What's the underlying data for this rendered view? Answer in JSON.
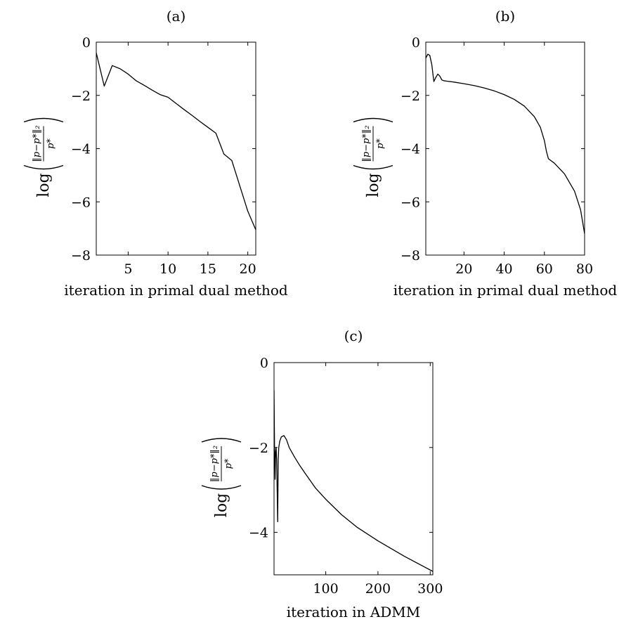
{
  "chart_data": [
    {
      "panel_label": "(a)",
      "type": "line",
      "title": "(a)",
      "xlabel": "iteration in primal dual method",
      "ylabel": "log(‖p−p*‖₂ / p*)",
      "ylabel_parts": {
        "log": "log",
        "numerator": "‖p−p*‖₂",
        "denominator": "p*"
      },
      "xlim": [
        1,
        21
      ],
      "ylim": [
        -8,
        0
      ],
      "xticks": [
        5,
        10,
        15,
        20
      ],
      "yticks": [
        0,
        -2,
        -4,
        -6,
        -8
      ],
      "ytick_labels": [
        "0",
        "−2",
        "−4",
        "−6",
        "−8"
      ],
      "xtick_labels": [
        "5",
        "10",
        "15",
        "20"
      ],
      "grid": false,
      "series": [
        {
          "x": [
            1,
            2,
            3,
            4,
            5,
            6,
            7,
            8,
            9,
            10,
            11,
            12,
            13,
            14,
            15,
            16,
            17,
            18,
            19,
            20,
            21
          ],
          "y": [
            -0.4,
            -1.65,
            -0.88,
            -1.0,
            -1.2,
            -1.45,
            -1.62,
            -1.8,
            -1.97,
            -2.07,
            -2.3,
            -2.53,
            -2.75,
            -2.98,
            -3.2,
            -3.42,
            -4.2,
            -4.45,
            -5.4,
            -6.35,
            -7.05
          ]
        }
      ]
    },
    {
      "panel_label": "(b)",
      "type": "line",
      "title": "(b)",
      "xlabel": "iteration in primal dual method",
      "ylabel": "log(‖p−p*‖₂ / p*)",
      "ylabel_parts": {
        "log": "log",
        "numerator": "‖p−p*‖₂",
        "denominator": "p*"
      },
      "xlim": [
        1,
        80
      ],
      "ylim": [
        -8,
        0
      ],
      "xticks": [
        20,
        40,
        60,
        80
      ],
      "yticks": [
        0,
        -2,
        -4,
        -6,
        -8
      ],
      "ytick_labels": [
        "0",
        "−2",
        "−4",
        "−6",
        "−8"
      ],
      "xtick_labels": [
        "20",
        "40",
        "60",
        "80"
      ],
      "grid": false,
      "series": [
        {
          "x": [
            1,
            2,
            3,
            4,
            5,
            6,
            7,
            8,
            9,
            10,
            15,
            20,
            25,
            30,
            35,
            40,
            45,
            50,
            55,
            58,
            60,
            61,
            62,
            65,
            70,
            75,
            78,
            80
          ],
          "y": [
            -0.6,
            -0.45,
            -0.5,
            -0.85,
            -1.48,
            -1.32,
            -1.2,
            -1.28,
            -1.42,
            -1.45,
            -1.5,
            -1.56,
            -1.63,
            -1.72,
            -1.83,
            -1.97,
            -2.15,
            -2.4,
            -2.8,
            -3.2,
            -3.7,
            -4.1,
            -4.38,
            -4.55,
            -4.95,
            -5.6,
            -6.3,
            -7.2
          ]
        }
      ]
    },
    {
      "panel_label": "(c)",
      "type": "line",
      "title": "(c)",
      "xlabel": "iteration in ADMM",
      "ylabel": "log(‖p−p*‖₂ / p*)",
      "ylabel_parts": {
        "log": "log",
        "numerator": "‖p−p*‖₂",
        "denominator": "p*"
      },
      "xlim": [
        1,
        305
      ],
      "ylim": [
        -5,
        0
      ],
      "xticks": [
        100,
        200,
        300
      ],
      "yticks": [
        0,
        -2,
        -4
      ],
      "ytick_labels": [
        "0",
        "−2",
        "−4"
      ],
      "xtick_labels": [
        "100",
        "200",
        "300"
      ],
      "grid": false,
      "series": [
        {
          "x": [
            1,
            2,
            3,
            4,
            5,
            6,
            7,
            8,
            9,
            10,
            12,
            15,
            20,
            25,
            30,
            40,
            50,
            60,
            80,
            100,
            130,
            160,
            200,
            250,
            305
          ],
          "y": [
            -0.65,
            -2.0,
            -2.75,
            -2.1,
            -2.0,
            -2.3,
            -3.0,
            -3.75,
            -2.3,
            -2.0,
            -1.85,
            -1.75,
            -1.72,
            -1.82,
            -2.0,
            -2.22,
            -2.42,
            -2.6,
            -2.95,
            -3.22,
            -3.58,
            -3.88,
            -4.2,
            -4.56,
            -4.92
          ]
        }
      ]
    }
  ]
}
